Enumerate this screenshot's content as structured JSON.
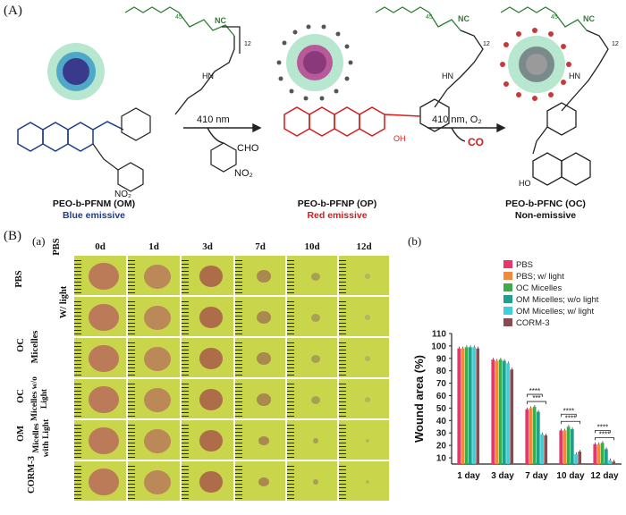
{
  "panelA": {
    "letter": "(A)",
    "arrow1_label": "410 nm",
    "arrow2_label": "410 nm, O₂",
    "co_label": "CO",
    "byproduct": {
      "cho": "CHO",
      "no2": "NO₂"
    },
    "struct_labels": {
      "peg_sub": "45",
      "poly_sub": "12",
      "nc": "NC",
      "hn": "HN",
      "oh": "OH",
      "ho": "HO",
      "no2": "NO₂"
    },
    "compounds": [
      {
        "name": "PEO-b-PFNM (OM)",
        "emission": "Blue emissive"
      },
      {
        "name": "PEO-b-PFNP (OP)",
        "emission": "Red emissive"
      },
      {
        "name": "PEO-b-PFNC (OC)",
        "emission": "Non-emissive"
      }
    ]
  },
  "panelB": {
    "letter": "(B)",
    "sub_a": "(a)",
    "sub_b": "(b)",
    "days": [
      "0d",
      "1d",
      "3d",
      "7d",
      "10d",
      "12d"
    ],
    "rows": [
      {
        "line1": "PBS",
        "line2": ""
      },
      {
        "line1": "PBS",
        "line2": "W/ light"
      },
      {
        "line1": "OC",
        "line2": "Micelles"
      },
      {
        "line1": "OC",
        "line2": "Micelles w/o Light"
      },
      {
        "line1": "OM",
        "line2": "Micelles with Light"
      },
      {
        "line1": "CORM-3",
        "line2": ""
      }
    ]
  },
  "chart_data": {
    "type": "bar",
    "title": "",
    "xlabel": "",
    "ylabel": "Wound area (%)",
    "ylim": [
      5,
      110
    ],
    "yticks": [
      10,
      20,
      30,
      40,
      50,
      60,
      70,
      80,
      90,
      100,
      110
    ],
    "categories": [
      "1 day",
      "3 day",
      "7 day",
      "10 day",
      "12 day"
    ],
    "series": [
      {
        "name": "PBS",
        "color": "#e8356a",
        "values": [
          98,
          89,
          49,
          32,
          21
        ]
      },
      {
        "name": "PBS; w/ light",
        "color": "#f08a3c",
        "values": [
          98,
          88,
          50,
          32,
          21
        ]
      },
      {
        "name": "OC Micelles",
        "color": "#3cab4a",
        "values": [
          99,
          89,
          51,
          35,
          22
        ]
      },
      {
        "name": "OM Micelles; w/o light",
        "color": "#20a08a",
        "values": [
          99,
          88,
          47,
          33,
          17
        ]
      },
      {
        "name": "OM Micelles; w/ light",
        "color": "#3dd0d8",
        "values": [
          99,
          86,
          29,
          13,
          8
        ]
      },
      {
        "name": "CORM-3",
        "color": "#8a4a52",
        "values": [
          98,
          81,
          28,
          15,
          7
        ]
      }
    ],
    "significance": [
      {
        "category": "7 day",
        "labels": [
          "***",
          "****"
        ]
      },
      {
        "category": "10 day",
        "labels": [
          "****",
          "****"
        ]
      },
      {
        "category": "12 day",
        "labels": [
          "****",
          "****"
        ]
      }
    ]
  }
}
